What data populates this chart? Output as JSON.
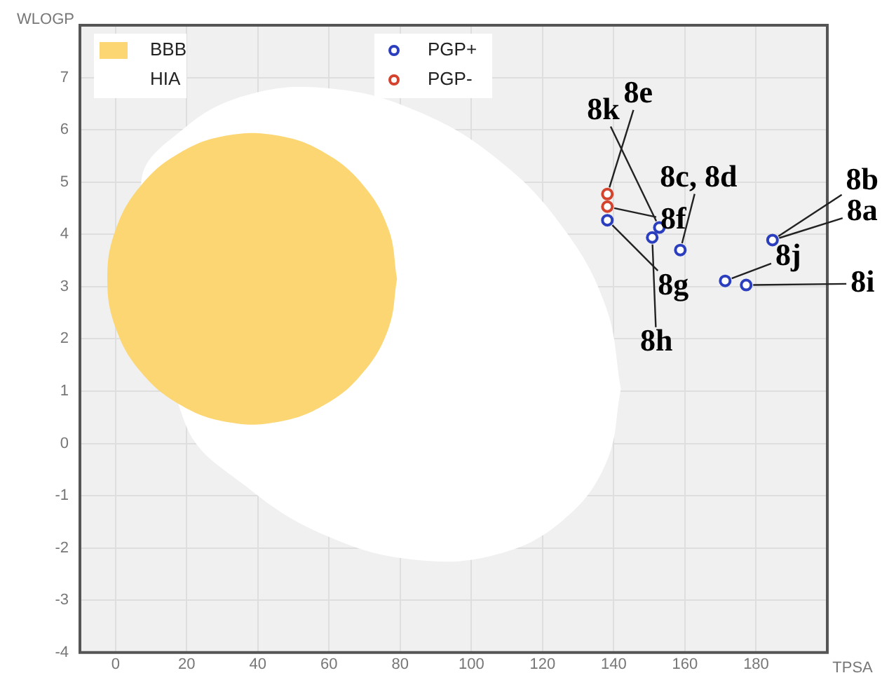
{
  "chart_data": {
    "type": "scatter",
    "xlabel": "TPSA",
    "ylabel": "WLOGP",
    "xlim": [
      -10,
      200
    ],
    "ylim": [
      -4,
      8
    ],
    "xticks": [
      0,
      20,
      40,
      60,
      80,
      100,
      120,
      140,
      160,
      180
    ],
    "yticks": [
      -4,
      -3,
      -2,
      -1,
      0,
      1,
      2,
      3,
      4,
      5,
      6,
      7
    ],
    "grid": true,
    "legend": "top left",
    "marker": "circle",
    "series": [
      {
        "name": "BBB",
        "type": "area",
        "marker": "none",
        "color": "#fcd673",
        "x": [
          79.1,
          76.7,
          69.6,
          58.8,
          45.5,
          31.3,
          18.1,
          7.2,
          0.1,
          -2.3,
          0.1,
          7.2,
          18.1,
          31.3,
          45.5,
          58.8,
          69.6,
          76.7,
          79.1
        ],
        "values": [
          3.15,
          4.1,
          4.94,
          5.56,
          5.89,
          5.89,
          5.56,
          4.94,
          4.1,
          3.15,
          2.2,
          1.36,
          0.74,
          0.41,
          0.41,
          0.74,
          1.36,
          2.2,
          3.15
        ]
      },
      {
        "name": "HIA",
        "type": "area",
        "marker": "none",
        "color": "#ffffff",
        "x": [
          142,
          137.8,
          125.7,
          107.3,
          84.6,
          60.4,
          37.8,
          19.3,
          7.2,
          19.3,
          37.8,
          60.4,
          84.6,
          107.3,
          125.7,
          137.8,
          142
        ],
        "values": [
          1.04,
          2.61,
          4.13,
          5.44,
          6.36,
          6.79,
          6.68,
          6.03,
          4.94,
          0.43,
          -0.88,
          -1.8,
          -2.23,
          -2.12,
          -1.47,
          -0.38,
          1.04
        ]
      },
      {
        "name": "PGP+",
        "type": "scatter",
        "color": "#2b3fbe",
        "x": [
          138.2,
          152.8,
          150.8,
          158.7,
          184.6,
          171.3,
          177.2
        ],
        "values": [
          4.27,
          4.13,
          3.94,
          3.7,
          3.89,
          3.11,
          3.03
        ]
      },
      {
        "name": "PGP-",
        "type": "scatter",
        "color": "#d4432e",
        "x": [
          138.2,
          138.2
        ],
        "values": [
          4.77,
          4.53
        ]
      }
    ],
    "annotations": [
      {
        "text": "8k",
        "x": 152.8,
        "y": 4.13
      },
      {
        "text": "8e",
        "x": 138.2,
        "y": 4.77
      },
      {
        "text": "8c, 8d",
        "x": 158.7,
        "y": 3.7
      },
      {
        "text": "8f",
        "x": 138.2,
        "y": 4.53
      },
      {
        "text": "8g",
        "x": 138.2,
        "y": 4.27
      },
      {
        "text": "8h",
        "x": 150.8,
        "y": 3.94
      },
      {
        "text": "8b",
        "x": 184.6,
        "y": 3.89
      },
      {
        "text": "8a",
        "x": 184.6,
        "y": 3.89
      },
      {
        "text": "8j",
        "x": 171.3,
        "y": 3.11
      },
      {
        "text": "8i",
        "x": 177.2,
        "y": 3.03
      }
    ]
  }
}
